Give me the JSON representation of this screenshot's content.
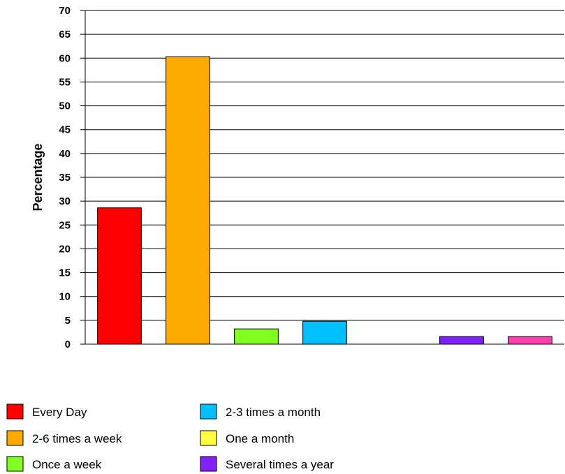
{
  "chart_data": {
    "type": "bar",
    "title": "",
    "xlabel": "",
    "ylabel": "Percentage",
    "ylim": [
      0,
      70
    ],
    "yticks": [
      0,
      5,
      10,
      15,
      20,
      25,
      30,
      35,
      40,
      45,
      50,
      55,
      60,
      65,
      70
    ],
    "grid": true,
    "legend_position": "bottom",
    "categories": [
      "Every Day",
      "2-6 times a week",
      "Once a week",
      "2-3 times a month",
      "One a month",
      "Several times a year",
      ""
    ],
    "values": [
      28.6,
      60.3,
      3.2,
      4.8,
      0,
      1.6,
      1.6
    ],
    "colors": [
      "#ff0000",
      "#ffaa00",
      "#80ff20",
      "#00bfff",
      "#ffff40",
      "#8020ff",
      "#ff40b0"
    ],
    "legend": [
      {
        "label": "Every Day",
        "color": "#ff0000"
      },
      {
        "label": "2-6 times a week",
        "color": "#ffaa00"
      },
      {
        "label": "Once a week",
        "color": "#80ff20"
      },
      {
        "label": "2-3 times a month",
        "color": "#00bfff"
      },
      {
        "label": "One a month",
        "color": "#ffff40"
      },
      {
        "label": "Several times a year",
        "color": "#8020ff"
      }
    ]
  }
}
